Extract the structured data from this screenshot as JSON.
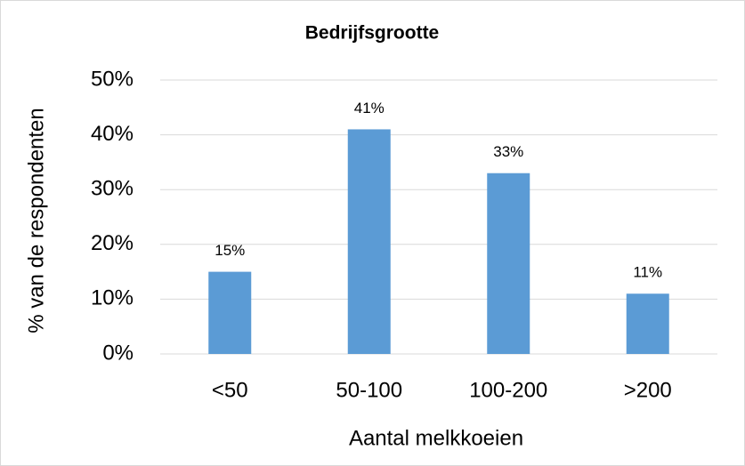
{
  "chart_data": {
    "type": "bar",
    "title": "Bedrijfsgrootte",
    "x_label": "Aantal melkkoeien",
    "y_label": "% van de respondenten",
    "categories": [
      "<50",
      "50-100",
      "100-200",
      ">200"
    ],
    "values": [
      15,
      41,
      33,
      11
    ],
    "value_labels": [
      "15%",
      "41%",
      "33%",
      "11%"
    ],
    "color": "#5b9bd5",
    "ylim": [
      0,
      50
    ],
    "yticks": [
      {
        "value": 0,
        "label": "0%"
      },
      {
        "value": 10,
        "label": "10%"
      },
      {
        "value": 20,
        "label": "20%"
      },
      {
        "value": 30,
        "label": "30%"
      },
      {
        "value": 40,
        "label": "40%"
      },
      {
        "value": 50,
        "label": "50%"
      }
    ],
    "grid": true
  }
}
